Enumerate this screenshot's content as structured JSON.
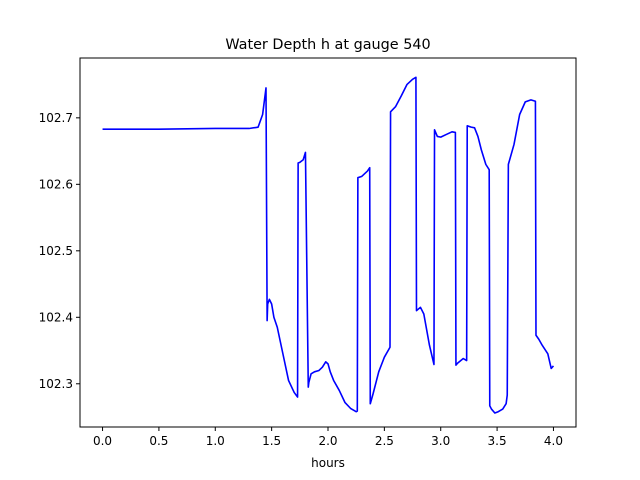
{
  "chart_data": {
    "type": "line",
    "title": "Water Depth h at gauge 540",
    "xlabel": "hours",
    "ylabel": "",
    "xlim": [
      -0.2,
      4.2
    ],
    "ylim": [
      102.235,
      102.79
    ],
    "xticks": [
      "0.0",
      "0.5",
      "1.0",
      "1.5",
      "2.0",
      "2.5",
      "3.0",
      "3.5",
      "4.0"
    ],
    "xtick_values": [
      0.0,
      0.5,
      1.0,
      1.5,
      2.0,
      2.5,
      3.0,
      3.5,
      4.0
    ],
    "yticks": [
      "102.3",
      "102.4",
      "102.5",
      "102.6",
      "102.7"
    ],
    "ytick_values": [
      102.3,
      102.4,
      102.5,
      102.6,
      102.7
    ],
    "grid": false,
    "line_color": "#0000ff",
    "series": [
      {
        "x": [
          0.0,
          0.5,
          1.0,
          1.3,
          1.38,
          1.42,
          1.45,
          1.46,
          1.465,
          1.48,
          1.5,
          1.52,
          1.55,
          1.6,
          1.65,
          1.7,
          1.73,
          1.735,
          1.75,
          1.78,
          1.8,
          1.825,
          1.83,
          1.85,
          1.88,
          1.92,
          1.95,
          1.98,
          2.0,
          2.02,
          2.05,
          2.1,
          2.15,
          2.2,
          2.25,
          2.26,
          2.265,
          2.3,
          2.35,
          2.37,
          2.375,
          2.4,
          2.45,
          2.5,
          2.55,
          2.555,
          2.6,
          2.65,
          2.7,
          2.75,
          2.78,
          2.785,
          2.82,
          2.85,
          2.9,
          2.94,
          2.945,
          2.97,
          3.0,
          3.05,
          3.1,
          3.13,
          3.135,
          3.15,
          3.2,
          3.23,
          3.235,
          3.27,
          3.3,
          3.33,
          3.36,
          3.4,
          3.43,
          3.435,
          3.45,
          3.48,
          3.51,
          3.55,
          3.58,
          3.59,
          3.6,
          3.65,
          3.7,
          3.75,
          3.8,
          3.84,
          3.845,
          3.87,
          3.9,
          3.95,
          3.98,
          4.0
        ],
        "y": [
          102.683,
          102.683,
          102.684,
          102.684,
          102.686,
          102.705,
          102.745,
          102.395,
          102.42,
          102.427,
          102.42,
          102.4,
          102.385,
          102.345,
          102.305,
          102.287,
          102.28,
          102.632,
          102.633,
          102.637,
          102.648,
          102.295,
          102.302,
          102.315,
          102.318,
          102.32,
          102.325,
          102.333,
          102.33,
          102.318,
          102.305,
          102.29,
          102.272,
          102.263,
          102.258,
          102.259,
          102.61,
          102.612,
          102.62,
          102.625,
          102.27,
          102.285,
          102.318,
          102.34,
          102.355,
          102.709,
          102.717,
          102.733,
          102.75,
          102.758,
          102.761,
          102.41,
          102.415,
          102.405,
          102.358,
          102.329,
          102.682,
          102.672,
          102.671,
          102.675,
          102.679,
          102.678,
          102.328,
          102.331,
          102.338,
          102.335,
          102.688,
          102.686,
          102.685,
          102.672,
          102.652,
          102.63,
          102.622,
          102.267,
          102.262,
          102.256,
          102.258,
          102.262,
          102.27,
          102.283,
          102.63,
          102.66,
          102.705,
          102.724,
          102.727,
          102.725,
          102.373,
          102.367,
          102.358,
          102.345,
          102.323,
          102.327
        ]
      }
    ]
  }
}
